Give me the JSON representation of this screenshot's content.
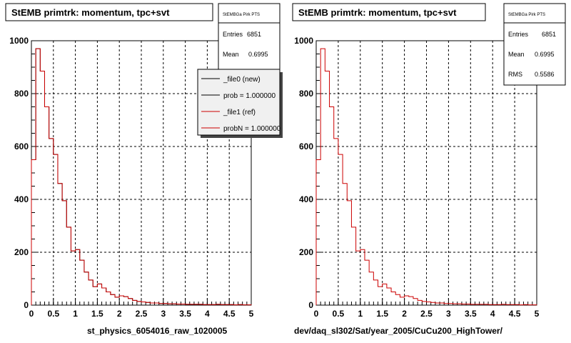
{
  "colors": {
    "series_new": "#000000",
    "series_ref": "#cc0000"
  },
  "legend": {
    "entries": [
      "_file0 (new)",
      "prob = 1.000000",
      "_file1 (ref)",
      "probN = 1.000000"
    ],
    "placement": "top-right of left panel"
  },
  "chart_data": [
    {
      "type": "line",
      "panel": "left",
      "title": "StEMB primtrk: momentum, tpc+svt",
      "xlabel": "st_physics_6054016_raw_1020005",
      "ylabel": "",
      "xlim": [
        0,
        5
      ],
      "ylim": [
        0,
        1000
      ],
      "grid": true,
      "x_ticks": [
        "0",
        "0.5",
        "1",
        "1.5",
        "2",
        "2.5",
        "3",
        "3.5",
        "4",
        "4.5",
        "5"
      ],
      "y_ticks": [
        "0",
        "200",
        "400",
        "600",
        "800",
        "1000"
      ],
      "stats": {
        "name": "StEMBGa Pirk PTS",
        "entries_label": "Entries",
        "entries": "6851",
        "mean_label": "Mean",
        "mean": "0.6995"
      },
      "bin_width": 0.1,
      "series": [
        {
          "name": "_file0 (new)",
          "values": [
            550,
            970,
            885,
            750,
            630,
            570,
            460,
            395,
            295,
            205,
            210,
            170,
            125,
            95,
            70,
            80,
            65,
            50,
            40,
            30,
            35,
            32,
            25,
            18,
            14,
            12,
            10,
            8,
            8,
            6,
            6,
            5,
            5,
            4,
            4,
            3,
            3,
            3,
            3,
            2,
            2,
            2,
            3,
            2,
            2,
            2,
            1,
            2,
            1,
            1
          ]
        },
        {
          "name": "_file1 (ref)",
          "values": [
            550,
            970,
            885,
            750,
            630,
            570,
            460,
            395,
            295,
            205,
            210,
            170,
            125,
            95,
            70,
            80,
            65,
            50,
            40,
            30,
            35,
            32,
            25,
            18,
            14,
            12,
            10,
            8,
            8,
            6,
            6,
            5,
            5,
            4,
            4,
            3,
            3,
            3,
            3,
            2,
            2,
            2,
            3,
            2,
            2,
            2,
            1,
            2,
            1,
            1
          ]
        }
      ]
    },
    {
      "type": "line",
      "panel": "right",
      "title": "StEMB primtrk: momentum, tpc+svt",
      "xlabel": "dev/daq_sl302/Sat/year_2005/CuCu200_HighTower/",
      "ylabel": "",
      "xlim": [
        0,
        5
      ],
      "ylim": [
        0,
        1000
      ],
      "grid": true,
      "x_ticks": [
        "0",
        "0.5",
        "1",
        "1.5",
        "2",
        "2.5",
        "3",
        "3.5",
        "4",
        "4.5",
        "5"
      ],
      "y_ticks": [
        "0",
        "200",
        "400",
        "600",
        "800",
        "1000"
      ],
      "stats": {
        "name": "StEMBGa Pirk PTS",
        "entries_label": "Entries",
        "entries": "6851",
        "mean_label": "Mean",
        "mean": "0.6995",
        "rms_label": "RMS",
        "rms": "0.5586"
      },
      "bin_width": 0.1,
      "series": [
        {
          "name": "_file1 (ref)",
          "values": [
            550,
            970,
            885,
            750,
            630,
            570,
            460,
            395,
            295,
            205,
            210,
            170,
            125,
            95,
            70,
            80,
            65,
            50,
            40,
            30,
            35,
            32,
            25,
            18,
            14,
            12,
            10,
            8,
            8,
            6,
            6,
            5,
            5,
            4,
            4,
            3,
            3,
            3,
            3,
            2,
            2,
            2,
            3,
            2,
            2,
            2,
            1,
            2,
            1,
            1
          ]
        }
      ]
    }
  ]
}
